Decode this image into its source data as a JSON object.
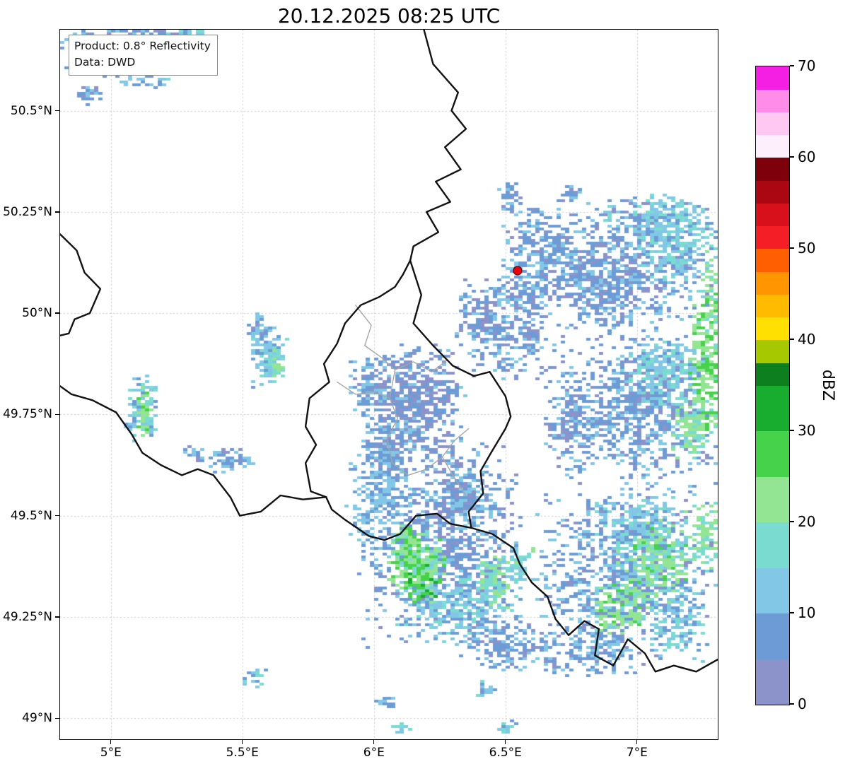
{
  "figure": {
    "title": "20.12.2025 08:25 UTC",
    "info_box": {
      "line1": "Product: 0.8° Reflectivity",
      "line2": "Data: DWD"
    }
  },
  "chart_data": {
    "type": "heatmap",
    "description": "Weather radar reflectivity map over the Luxembourg / Belgium / Germany / France border region",
    "grid": true,
    "grid_style": "dashed",
    "x_axis": {
      "range": [
        4.807,
        7.307
      ],
      "ticks": [
        {
          "value": 5.0,
          "label": "5°E"
        },
        {
          "value": 5.5,
          "label": "5.5°E"
        },
        {
          "value": 6.0,
          "label": "6°E"
        },
        {
          "value": 6.5,
          "label": "6.5°E"
        },
        {
          "value": 7.0,
          "label": "7°E"
        }
      ]
    },
    "y_axis": {
      "range": [
        48.948,
        50.7
      ],
      "ticks": [
        {
          "value": 49.0,
          "label": "49°N"
        },
        {
          "value": 49.25,
          "label": "49.25°N"
        },
        {
          "value": 49.5,
          "label": "49.5°N"
        },
        {
          "value": 49.75,
          "label": "49.75°N"
        },
        {
          "value": 50.0,
          "label": "50°N"
        },
        {
          "value": 50.25,
          "label": "50.25°N"
        },
        {
          "value": 50.5,
          "label": "50.5°N"
        }
      ]
    },
    "colorbar": {
      "label": "dBZ",
      "range": [
        0,
        70
      ],
      "ticks": [
        0,
        10,
        20,
        30,
        40,
        50,
        60,
        70
      ],
      "segments": [
        {
          "from": 0,
          "to": 5,
          "color": "#8c93ca"
        },
        {
          "from": 5,
          "to": 10,
          "color": "#6d9bd6"
        },
        {
          "from": 10,
          "to": 15,
          "color": "#82c8e6"
        },
        {
          "from": 15,
          "to": 20,
          "color": "#7adcd0"
        },
        {
          "from": 20,
          "to": 25,
          "color": "#93e493"
        },
        {
          "from": 25,
          "to": 30,
          "color": "#47d24c"
        },
        {
          "from": 30,
          "to": 35,
          "color": "#18ad2e"
        },
        {
          "from": 35,
          "to": 37.5,
          "color": "#0d7f1f"
        },
        {
          "from": 37.5,
          "to": 40,
          "color": "#a6c800"
        },
        {
          "from": 40,
          "to": 42.5,
          "color": "#ffe000"
        },
        {
          "from": 42.5,
          "to": 45,
          "color": "#ffbb00"
        },
        {
          "from": 45,
          "to": 47.5,
          "color": "#ff9500"
        },
        {
          "from": 47.5,
          "to": 50,
          "color": "#ff5f00"
        },
        {
          "from": 50,
          "to": 52.5,
          "color": "#f41f26"
        },
        {
          "from": 52.5,
          "to": 55,
          "color": "#d8101c"
        },
        {
          "from": 55,
          "to": 57.5,
          "color": "#ab0713"
        },
        {
          "from": 57.5,
          "to": 60,
          "color": "#7d000b"
        },
        {
          "from": 60,
          "to": 62.5,
          "color": "#fdeffb"
        },
        {
          "from": 62.5,
          "to": 65,
          "color": "#ffc8f3"
        },
        {
          "from": 65,
          "to": 67.5,
          "color": "#ff8ce9"
        },
        {
          "from": 67.5,
          "to": 70,
          "color": "#f41fe2"
        }
      ]
    },
    "marker": {
      "name": "radar-site",
      "lon": 6.546,
      "lat": 50.105,
      "color": "#e8000b",
      "edge_color": "#5c0000"
    },
    "country_borders": [
      [
        [
          6.19,
          50.7
        ],
        [
          6.225,
          50.615
        ],
        [
          6.32,
          50.545
        ],
        [
          6.295,
          50.5
        ],
        [
          6.35,
          50.455
        ],
        [
          6.27,
          50.41
        ],
        [
          6.33,
          50.355
        ],
        [
          6.235,
          50.325
        ],
        [
          6.29,
          50.275
        ],
        [
          6.2,
          50.25
        ],
        [
          6.245,
          50.2
        ],
        [
          6.15,
          50.165
        ],
        [
          6.138,
          50.13
        ]
      ],
      [
        [
          6.138,
          50.13
        ],
        [
          6.18,
          50.045
        ],
        [
          6.15,
          49.975
        ],
        [
          6.225,
          49.92
        ],
        [
          6.3,
          49.87
        ],
        [
          6.38,
          49.845
        ],
        [
          6.44,
          49.855
        ],
        [
          6.5,
          49.795
        ],
        [
          6.52,
          49.745
        ],
        [
          6.5,
          49.715
        ],
        [
          6.445,
          49.655
        ],
        [
          6.405,
          49.61
        ],
        [
          6.415,
          49.555
        ],
        [
          6.36,
          49.51
        ],
        [
          6.37,
          49.47
        ]
      ],
      [
        [
          6.37,
          49.47
        ],
        [
          6.29,
          49.48
        ],
        [
          6.24,
          49.505
        ],
        [
          6.16,
          49.5
        ],
        [
          6.1,
          49.455
        ],
        [
          6.04,
          49.44
        ],
        [
          5.98,
          49.45
        ],
        [
          5.89,
          49.49
        ],
        [
          5.84,
          49.515
        ],
        [
          5.818,
          49.546
        ]
      ],
      [
        [
          5.818,
          49.546
        ],
        [
          5.76,
          49.56
        ],
        [
          5.74,
          49.63
        ],
        [
          5.78,
          49.675
        ],
        [
          5.74,
          49.72
        ],
        [
          5.755,
          49.79
        ],
        [
          5.83,
          49.83
        ],
        [
          5.81,
          49.875
        ],
        [
          5.86,
          49.925
        ],
        [
          5.89,
          49.975
        ],
        [
          5.95,
          50.02
        ],
        [
          6.02,
          50.04
        ],
        [
          6.08,
          50.065
        ],
        [
          6.11,
          50.095
        ],
        [
          6.138,
          50.13
        ]
      ],
      [
        [
          5.818,
          49.546
        ],
        [
          5.73,
          49.54
        ],
        [
          5.645,
          49.55
        ],
        [
          5.57,
          49.51
        ],
        [
          5.49,
          49.5
        ],
        [
          5.455,
          49.545
        ],
        [
          5.39,
          49.6
        ],
        [
          5.33,
          49.615
        ],
        [
          5.27,
          49.6
        ],
        [
          5.19,
          49.625
        ],
        [
          5.12,
          49.655
        ],
        [
          5.08,
          49.7
        ],
        [
          5.02,
          49.755
        ],
        [
          4.93,
          49.785
        ],
        [
          4.85,
          49.8
        ],
        [
          4.807,
          49.82
        ]
      ],
      [
        [
          4.807,
          50.195
        ],
        [
          4.87,
          50.155
        ],
        [
          4.9,
          50.1
        ],
        [
          4.96,
          50.06
        ],
        [
          4.92,
          50.0
        ],
        [
          4.862,
          49.985
        ],
        [
          4.84,
          49.95
        ],
        [
          4.807,
          49.945
        ]
      ],
      [
        [
          6.37,
          49.47
        ],
        [
          6.45,
          49.455
        ],
        [
          6.53,
          49.42
        ],
        [
          6.555,
          49.38
        ],
        [
          6.6,
          49.335
        ],
        [
          6.66,
          49.3
        ],
        [
          6.69,
          49.245
        ],
        [
          6.74,
          49.205
        ],
        [
          6.8,
          49.24
        ],
        [
          6.855,
          49.22
        ],
        [
          6.84,
          49.155
        ],
        [
          6.91,
          49.13
        ],
        [
          6.965,
          49.195
        ],
        [
          7.03,
          49.16
        ],
        [
          7.07,
          49.115
        ],
        [
          7.14,
          49.13
        ],
        [
          7.225,
          49.115
        ],
        [
          7.307,
          49.145
        ]
      ]
    ],
    "regional_borders": [
      [
        [
          5.93,
          50.02
        ],
        [
          5.99,
          49.97
        ],
        [
          5.965,
          49.92
        ],
        [
          6.03,
          49.89
        ],
        [
          6.08,
          49.86
        ],
        [
          6.15,
          49.88
        ],
        [
          6.22,
          49.855
        ],
        [
          6.28,
          49.885
        ]
      ],
      [
        [
          6.08,
          49.86
        ],
        [
          6.06,
          49.79
        ],
        [
          6.09,
          49.74
        ],
        [
          6.05,
          49.69
        ],
        [
          6.07,
          49.63
        ],
        [
          6.13,
          49.6
        ],
        [
          6.2,
          49.615
        ],
        [
          6.26,
          49.645
        ],
        [
          6.305,
          49.685
        ],
        [
          6.36,
          49.715
        ]
      ],
      [
        [
          5.86,
          49.83
        ],
        [
          5.93,
          49.8
        ],
        [
          6.0,
          49.805
        ],
        [
          6.06,
          49.79
        ]
      ],
      [
        [
          6.26,
          49.645
        ],
        [
          6.3,
          49.6
        ],
        [
          6.35,
          49.55
        ]
      ]
    ],
    "blob_fields": [
      "lon",
      "lat",
      "rx_deg",
      "ry_deg",
      "dbz",
      "count"
    ],
    "precipitation_blobs": [
      [
        5.0,
        50.665,
        0.22,
        0.085,
        8,
        170
      ],
      [
        5.13,
        50.6,
        0.12,
        0.055,
        11,
        60
      ],
      [
        5.3,
        50.685,
        0.09,
        0.035,
        13,
        35
      ],
      [
        4.92,
        50.545,
        0.06,
        0.03,
        9,
        25
      ],
      [
        5.2,
        50.695,
        0.15,
        0.03,
        7,
        40
      ],
      [
        6.62,
        50.205,
        0.14,
        0.075,
        8,
        70
      ],
      [
        6.52,
        50.285,
        0.05,
        0.045,
        8,
        35
      ],
      [
        6.75,
        50.295,
        0.04,
        0.03,
        7,
        18
      ],
      [
        6.58,
        50.1,
        0.1,
        0.09,
        9,
        120
      ],
      [
        6.7,
        50.155,
        0.08,
        0.05,
        8,
        60
      ],
      [
        6.95,
        50.12,
        0.4,
        0.17,
        8,
        850
      ],
      [
        7.15,
        50.18,
        0.18,
        0.11,
        14,
        260
      ],
      [
        6.78,
        50.04,
        0.24,
        0.11,
        7,
        280
      ],
      [
        7.28,
        50.04,
        0.055,
        0.12,
        22,
        70
      ],
      [
        7.05,
        50.24,
        0.2,
        0.06,
        13,
        120
      ],
      [
        6.55,
        49.95,
        0.22,
        0.13,
        7,
        260
      ],
      [
        6.42,
        50.0,
        0.12,
        0.09,
        7,
        130
      ],
      [
        7.0,
        49.76,
        0.31,
        0.2,
        8,
        850
      ],
      [
        7.1,
        49.86,
        0.17,
        0.09,
        14,
        220
      ],
      [
        7.27,
        49.86,
        0.075,
        0.18,
        24,
        240
      ],
      [
        7.21,
        49.71,
        0.09,
        0.09,
        20,
        130
      ],
      [
        6.75,
        49.72,
        0.12,
        0.12,
        7,
        160
      ],
      [
        6.95,
        49.35,
        0.36,
        0.24,
        8,
        900
      ],
      [
        7.02,
        49.46,
        0.19,
        0.11,
        13,
        260
      ],
      [
        7.06,
        49.38,
        0.14,
        0.11,
        21,
        260
      ],
      [
        6.94,
        49.27,
        0.11,
        0.075,
        22,
        150
      ],
      [
        7.25,
        49.45,
        0.065,
        0.095,
        20,
        90
      ],
      [
        6.82,
        49.17,
        0.19,
        0.07,
        9,
        140
      ],
      [
        7.15,
        49.24,
        0.12,
        0.09,
        13,
        130
      ],
      [
        6.25,
        49.44,
        0.33,
        0.28,
        7,
        950
      ],
      [
        6.16,
        49.38,
        0.115,
        0.095,
        22,
        260
      ],
      [
        6.185,
        49.33,
        0.075,
        0.055,
        28,
        110
      ],
      [
        6.13,
        49.43,
        0.05,
        0.05,
        25,
        60
      ],
      [
        6.45,
        49.33,
        0.075,
        0.075,
        20,
        120
      ],
      [
        6.55,
        49.37,
        0.055,
        0.055,
        16,
        60
      ],
      [
        6.32,
        49.27,
        0.23,
        0.09,
        13,
        240
      ],
      [
        6.5,
        49.185,
        0.22,
        0.075,
        8,
        180
      ],
      [
        6.02,
        49.54,
        0.13,
        0.17,
        10,
        240
      ],
      [
        6.35,
        49.55,
        0.12,
        0.1,
        8,
        150
      ],
      [
        6.15,
        49.78,
        0.2,
        0.16,
        6,
        560
      ],
      [
        6.05,
        49.66,
        0.11,
        0.09,
        9,
        150
      ],
      [
        5.98,
        49.82,
        0.09,
        0.07,
        8,
        100
      ],
      [
        5.6,
        49.9,
        0.075,
        0.085,
        12,
        120
      ],
      [
        5.625,
        49.875,
        0.035,
        0.04,
        20,
        30
      ],
      [
        5.555,
        49.965,
        0.045,
        0.035,
        8,
        35
      ],
      [
        5.12,
        49.765,
        0.065,
        0.085,
        12,
        110
      ],
      [
        5.13,
        49.755,
        0.028,
        0.065,
        21,
        45
      ],
      [
        5.45,
        49.64,
        0.095,
        0.035,
        9,
        55
      ],
      [
        5.32,
        49.655,
        0.04,
        0.02,
        8,
        18
      ],
      [
        5.55,
        49.1,
        0.055,
        0.025,
        13,
        22
      ],
      [
        6.05,
        49.035,
        0.045,
        0.02,
        10,
        16
      ],
      [
        6.42,
        49.07,
        0.045,
        0.025,
        12,
        18
      ],
      [
        6.1,
        48.975,
        0.035,
        0.018,
        15,
        11
      ],
      [
        6.5,
        48.975,
        0.045,
        0.018,
        12,
        13
      ],
      [
        6.72,
        49.99,
        0.1,
        0.07,
        -1,
        200
      ],
      [
        6.62,
        49.63,
        0.12,
        0.06,
        -1,
        180
      ],
      [
        6.88,
        49.6,
        0.1,
        0.05,
        -1,
        120
      ]
    ]
  }
}
